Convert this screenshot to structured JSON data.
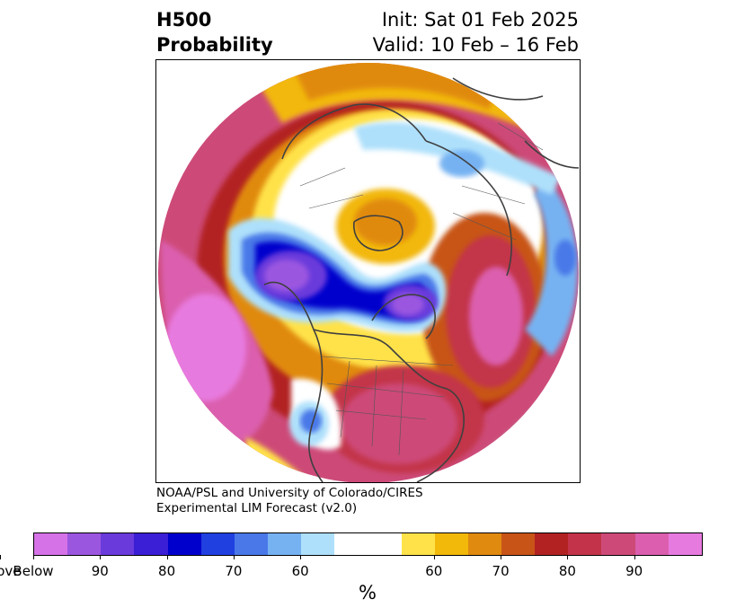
{
  "title": {
    "left_line1": "H500",
    "left_line2": "Probability",
    "right_line1": "Init: Sat 01 Feb 2025",
    "right_line2": "Valid: 10 Feb – 16 Feb"
  },
  "credit": {
    "line1": "NOAA/PSL and University of Colorado/CIRES",
    "line2": "Experimental LIM Forecast (v2.0)"
  },
  "colorbar": {
    "colors": [
      "#d672e8",
      "#9b56e0",
      "#6a3adb",
      "#3a1fd6",
      "#0000cc",
      "#2040e0",
      "#4a78e8",
      "#76b2f2",
      "#aee0fb",
      "#ffffff",
      "#ffe24a",
      "#f2b80a",
      "#e08a10",
      "#c85418",
      "#b22222",
      "#c3344a",
      "#cd4a78",
      "#db5fae",
      "#e77adf"
    ],
    "tick_labels": [
      "Below",
      "90",
      "80",
      "70",
      "60",
      "60",
      "70",
      "80",
      "90",
      "Above"
    ],
    "unit": "%"
  },
  "map": {
    "projection": "north-polar-stereographic",
    "below_color": "#d672e8",
    "above_color": "#e77adf"
  }
}
